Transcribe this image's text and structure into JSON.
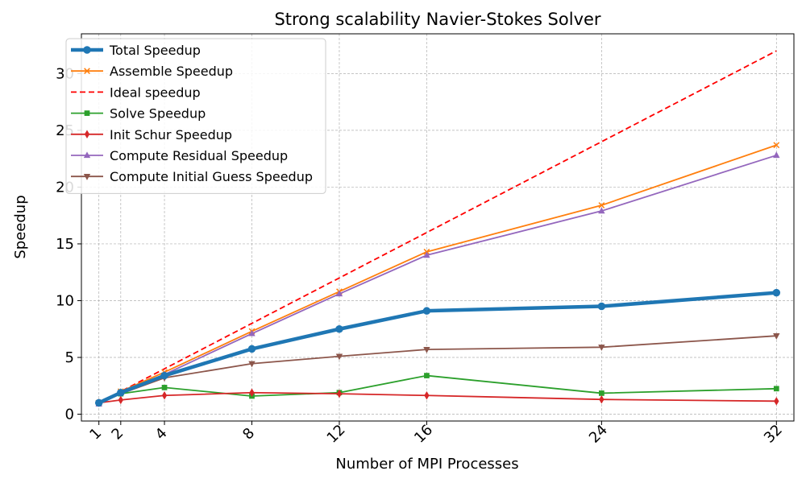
{
  "chart_data": {
    "type": "line",
    "title": "Strong scalability Navier-Stokes Solver",
    "xlabel": "Number of MPI Processes",
    "ylabel": "Speedup",
    "x": [
      1,
      2,
      4,
      8,
      12,
      16,
      24,
      32
    ],
    "x_tick_labels": [
      "1",
      "2",
      "4",
      "8",
      "12",
      "16",
      "24",
      "32"
    ],
    "xlim": [
      0.2,
      32.8
    ],
    "ylim": [
      -0.6,
      33.5
    ],
    "y_ticks": [
      0,
      5,
      10,
      15,
      20,
      25,
      30
    ],
    "y_tick_labels": [
      "0",
      "5",
      "10",
      "15",
      "20",
      "25",
      "30"
    ],
    "grid": true,
    "legend_position": "top-left",
    "series": [
      {
        "name": "Total Speedup",
        "color": "#1f77b4",
        "marker": "circle",
        "dash": "solid",
        "thick": true,
        "values": [
          1.0,
          1.9,
          3.4,
          5.75,
          7.5,
          9.1,
          9.5,
          10.7
        ]
      },
      {
        "name": "Assemble Speedup",
        "color": "#ff7f0e",
        "marker": "x",
        "dash": "solid",
        "thick": false,
        "values": [
          1.0,
          2.0,
          3.7,
          7.3,
          10.8,
          14.3,
          18.4,
          23.7
        ]
      },
      {
        "name": "Ideal speedup",
        "color": "#ff0000",
        "marker": "none",
        "dash": "dashed",
        "thick": false,
        "values": [
          1,
          2,
          4,
          8,
          12,
          16,
          24,
          32
        ]
      },
      {
        "name": "Solve Speedup",
        "color": "#2ca02c",
        "marker": "square",
        "dash": "solid",
        "thick": false,
        "values": [
          1.0,
          1.8,
          2.35,
          1.6,
          1.9,
          3.4,
          1.85,
          2.25
        ]
      },
      {
        "name": "Init Schur Speedup",
        "color": "#d62728",
        "marker": "diamond",
        "dash": "solid",
        "thick": false,
        "values": [
          1.0,
          1.25,
          1.65,
          1.9,
          1.8,
          1.65,
          1.3,
          1.15
        ]
      },
      {
        "name": "Compute Residual Speedup",
        "color": "#9467bd",
        "marker": "triangle-up",
        "dash": "solid",
        "thick": false,
        "values": [
          0.9,
          1.9,
          3.5,
          7.1,
          10.6,
          14.0,
          17.9,
          22.8
        ]
      },
      {
        "name": "Compute Initial Guess Speedup",
        "color": "#8c564b",
        "marker": "triangle-down",
        "dash": "solid",
        "thick": false,
        "values": [
          1.0,
          1.8,
          3.2,
          4.45,
          5.1,
          5.7,
          5.9,
          6.9
        ]
      }
    ]
  }
}
